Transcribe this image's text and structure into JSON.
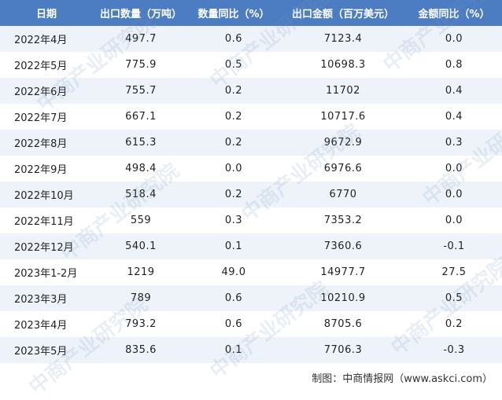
{
  "table": {
    "headers": [
      "日期",
      "出口数量（万吨）",
      "数量同比（%）",
      "出口金额（百万美元）",
      "金额同比（%）"
    ],
    "rows": [
      [
        "2022年4月",
        "497.7",
        "0.6",
        "7123.4",
        "0.0"
      ],
      [
        "2022年5月",
        "775.9",
        "0.5",
        "10698.3",
        "0.8"
      ],
      [
        "2022年6月",
        "755.7",
        "0.2",
        "11702",
        "0.4"
      ],
      [
        "2022年7月",
        "667.1",
        "0.2",
        "10717.6",
        "0.4"
      ],
      [
        "2022年8月",
        "615.3",
        "0.2",
        "9672.9",
        "0.3"
      ],
      [
        "2022年9月",
        "498.4",
        "0.0",
        "6976.6",
        "0.0"
      ],
      [
        "2022年10月",
        "518.4",
        "0.2",
        "6770",
        "0.0"
      ],
      [
        "2022年11月",
        "559",
        "0.3",
        "7353.2",
        "0.0"
      ],
      [
        "2022年12月",
        "540.1",
        "0.1",
        "7360.6",
        "-0.1"
      ],
      [
        "2023年1-2月",
        "1219",
        "49.0",
        "14977.7",
        "27.5"
      ],
      [
        "2023年3月",
        "789",
        "0.6",
        "10210.9",
        "0.5"
      ],
      [
        "2023年4月",
        "793.2",
        "0.6",
        "8705.6",
        "0.2"
      ],
      [
        "2023年5月",
        "835.6",
        "0.1",
        "7706.3",
        "-0.3"
      ]
    ]
  },
  "footer": {
    "credit": "制图：中商情报网（www.askci.com）"
  },
  "watermark": "中商产业研究院",
  "colors": {
    "header_bg": "#4c7dc2",
    "stripe": "#eef3fa",
    "header_text": "#ffffff"
  }
}
